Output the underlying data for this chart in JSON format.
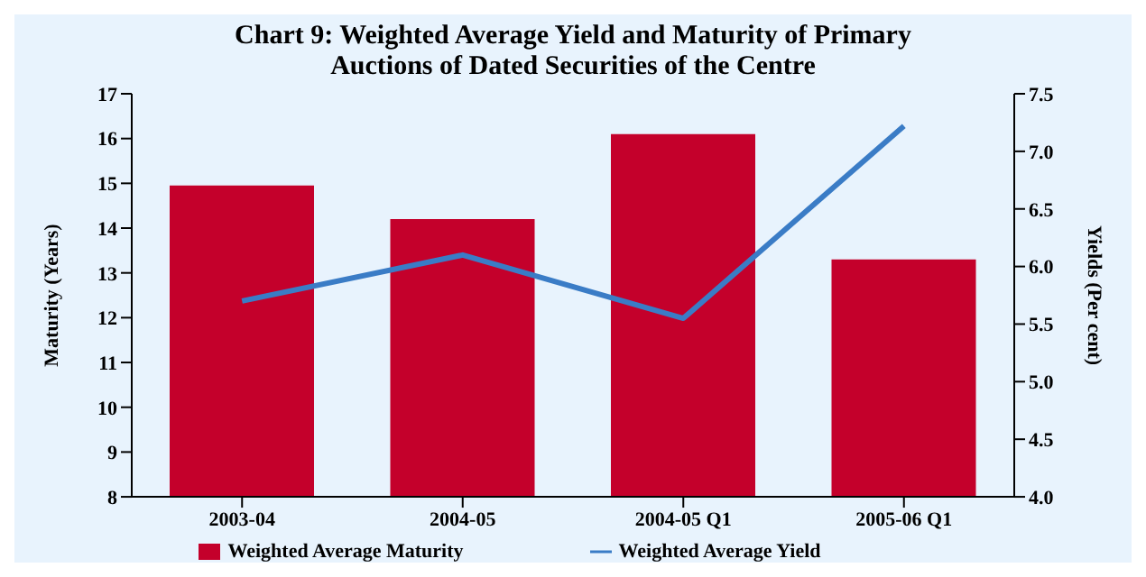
{
  "chart_data": {
    "type": "bar",
    "title": "Chart 9: Weighted Average Yield and Maturity of Primary Auctions of Dated Securities of the Centre",
    "categories": [
      "2003-04",
      "2004-05",
      "2004-05 Q1",
      "2005-06 Q1"
    ],
    "series": [
      {
        "name": "Weighted Average Maturity",
        "color": "#c4002b",
        "values": [
          14.95,
          14.2,
          16.1,
          13.3
        ]
      },
      {
        "name": "Weighted Average Yield",
        "type": "line",
        "axis": "y2",
        "color": "#3a7cc6",
        "values": [
          5.7,
          6.1,
          5.55,
          7.22
        ]
      }
    ],
    "ylabel": "Maturity (Years)",
    "y2label": "Yields (Per cent)",
    "ylim": [
      8,
      17
    ],
    "yticks": [
      8,
      9,
      10,
      11,
      12,
      13,
      14,
      15,
      16,
      17
    ],
    "y2lim": [
      4,
      7.5
    ],
    "y2ticks": [
      {
        "value": 4,
        "label": "4.0"
      },
      {
        "value": 4.5,
        "label": "4.5"
      },
      {
        "value": 5,
        "label": "5.0"
      },
      {
        "value": 5.5,
        "label": "5.5"
      },
      {
        "value": 6,
        "label": "6.0"
      },
      {
        "value": 6.5,
        "label": "6.5"
      },
      {
        "value": 7,
        "label": "7.0"
      },
      {
        "value": 7.5,
        "label": "7.5"
      }
    ],
    "legend": "bottom",
    "grid": false,
    "marker": "none"
  }
}
